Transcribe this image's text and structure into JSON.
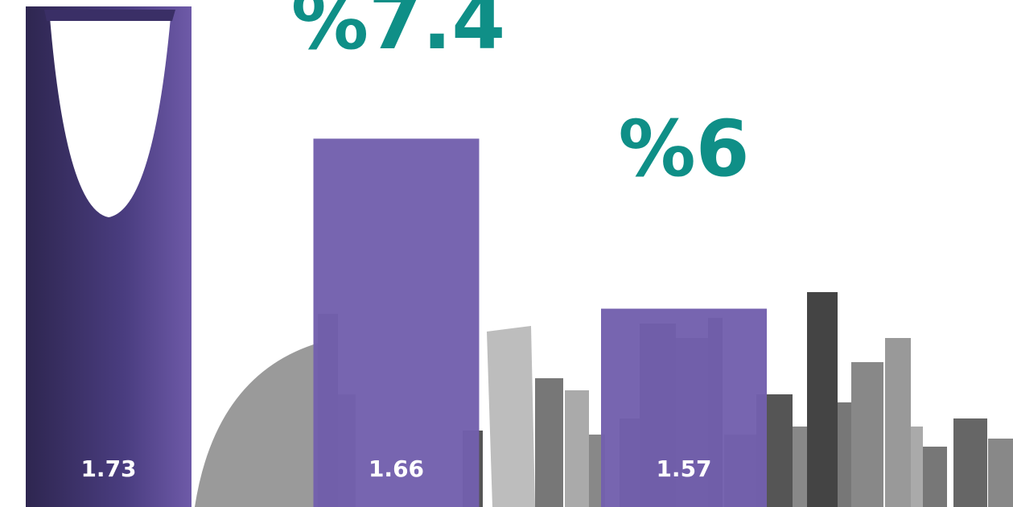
{
  "chart_data": {
    "type": "bar",
    "values": [
      1.73,
      1.66,
      1.57
    ],
    "color": "#7360ad",
    "ylim": [
      1.465,
      1.73
    ],
    "annotations": [
      {
        "text": "%7.4"
      },
      {
        "text": "%6"
      }
    ],
    "annotation_color": "#0f8f87"
  }
}
